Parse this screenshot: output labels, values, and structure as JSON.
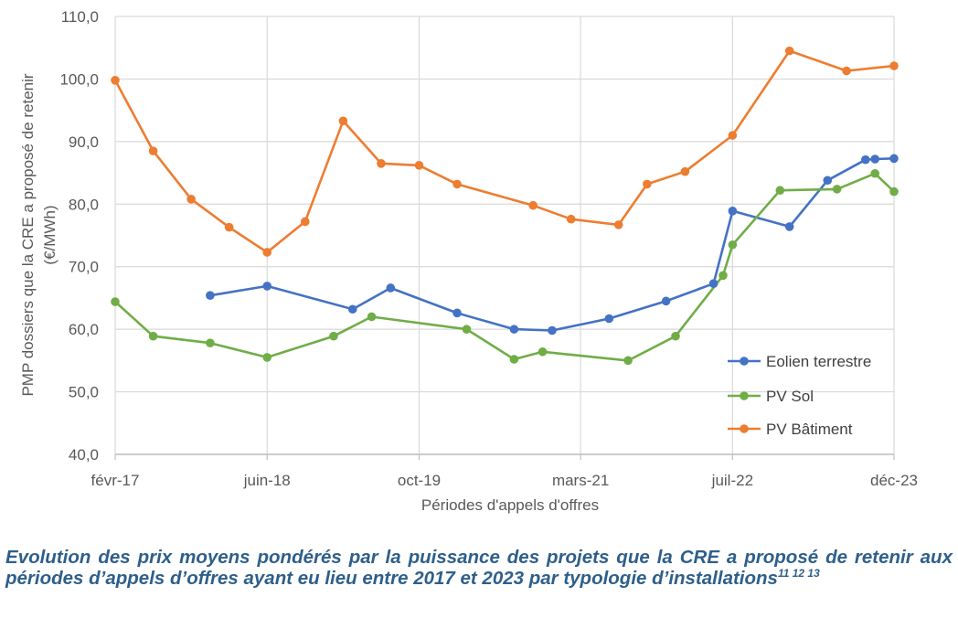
{
  "chart_data": {
    "type": "line",
    "xlabel": "Périodes d'appels d'offres",
    "ylabel_lines": [
      "PMP dossiers que la CRE a proposé de retenir",
      "(€/MWh)"
    ],
    "ylim": [
      40,
      110
    ],
    "y_ticks": [
      "40,0",
      "50,0",
      "60,0",
      "70,0",
      "80,0",
      "90,0",
      "100,0",
      "110,0"
    ],
    "x_range": [
      "2017-02",
      "2023-12"
    ],
    "x_ticks": [
      {
        "date": "2017-02",
        "label": "févr-17"
      },
      {
        "date": "2018-06",
        "label": "juin-18"
      },
      {
        "date": "2019-10",
        "label": "oct-19"
      },
      {
        "date": "2021-03",
        "label": "mars-21"
      },
      {
        "date": "2022-07",
        "label": "juil-22"
      },
      {
        "date": "2023-12",
        "label": "déc-23"
      }
    ],
    "grid": true,
    "legend_position": "bottom-right",
    "series": [
      {
        "name": "Eolien terrestre",
        "color": "#4472c4",
        "points": [
          {
            "x": "2017-12",
            "y": 65.4
          },
          {
            "x": "2018-06",
            "y": 66.9
          },
          {
            "x": "2019-03",
            "y": 63.2
          },
          {
            "x": "2019-07",
            "y": 66.6
          },
          {
            "x": "2020-02",
            "y": 62.6
          },
          {
            "x": "2020-08",
            "y": 60.0
          },
          {
            "x": "2020-12",
            "y": 59.8
          },
          {
            "x": "2021-06",
            "y": 61.7
          },
          {
            "x": "2021-12",
            "y": 64.5
          },
          {
            "x": "2022-05",
            "y": 67.3
          },
          {
            "x": "2022-07",
            "y": 78.9
          },
          {
            "x": "2023-01",
            "y": 76.4
          },
          {
            "x": "2023-05",
            "y": 83.8
          },
          {
            "x": "2023-09",
            "y": 87.1
          },
          {
            "x": "2023-10",
            "y": 87.2
          },
          {
            "x": "2023-12",
            "y": 87.3
          }
        ]
      },
      {
        "name": "PV Sol",
        "color": "#70ad47",
        "points": [
          {
            "x": "2017-02",
            "y": 64.4
          },
          {
            "x": "2017-06",
            "y": 58.9
          },
          {
            "x": "2017-12",
            "y": 57.8
          },
          {
            "x": "2018-06",
            "y": 55.5
          },
          {
            "x": "2019-01",
            "y": 58.9
          },
          {
            "x": "2019-05",
            "y": 62.0
          },
          {
            "x": "2020-03",
            "y": 60.0
          },
          {
            "x": "2020-08",
            "y": 55.2
          },
          {
            "x": "2020-11",
            "y": 56.4
          },
          {
            "x": "2021-08",
            "y": 55.0
          },
          {
            "x": "2022-01",
            "y": 58.9
          },
          {
            "x": "2022-06",
            "y": 68.6
          },
          {
            "x": "2022-07",
            "y": 73.5
          },
          {
            "x": "2022-12",
            "y": 82.2
          },
          {
            "x": "2023-06",
            "y": 82.4
          },
          {
            "x": "2023-10",
            "y": 84.9
          },
          {
            "x": "2023-12",
            "y": 82.0
          }
        ]
      },
      {
        "name": "PV Bâtiment",
        "color": "#ed7d31",
        "points": [
          {
            "x": "2017-02",
            "y": 99.8
          },
          {
            "x": "2017-06",
            "y": 88.5
          },
          {
            "x": "2017-10",
            "y": 80.8
          },
          {
            "x": "2018-02",
            "y": 76.3
          },
          {
            "x": "2018-06",
            "y": 72.3
          },
          {
            "x": "2018-10",
            "y": 77.2
          },
          {
            "x": "2019-02",
            "y": 93.3
          },
          {
            "x": "2019-06",
            "y": 86.5
          },
          {
            "x": "2019-10",
            "y": 86.2
          },
          {
            "x": "2020-02",
            "y": 83.2
          },
          {
            "x": "2020-10",
            "y": 79.8
          },
          {
            "x": "2021-02",
            "y": 77.6
          },
          {
            "x": "2021-07",
            "y": 76.7
          },
          {
            "x": "2021-10",
            "y": 83.2
          },
          {
            "x": "2022-02",
            "y": 85.2
          },
          {
            "x": "2022-07",
            "y": 91.0
          },
          {
            "x": "2023-01",
            "y": 104.5
          },
          {
            "x": "2023-07",
            "y": 101.3
          },
          {
            "x": "2023-12",
            "y": 102.1
          }
        ]
      }
    ]
  },
  "caption": {
    "text": "Evolution des prix moyens pondérés par la puissance des projets que la CRE a proposé de retenir aux périodes d’appels d’offres ayant eu lieu entre 2017 et 2023 par typologie d’installations",
    "footnotes": "11 12 13"
  }
}
